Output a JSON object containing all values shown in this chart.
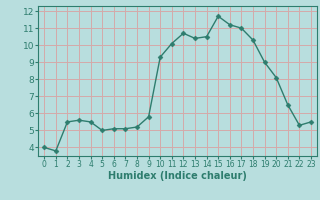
{
  "x": [
    0,
    1,
    2,
    3,
    4,
    5,
    6,
    7,
    8,
    9,
    10,
    11,
    12,
    13,
    14,
    15,
    16,
    17,
    18,
    19,
    20,
    21,
    22,
    23
  ],
  "y": [
    4.0,
    3.8,
    5.5,
    5.6,
    5.5,
    5.0,
    5.1,
    5.1,
    5.2,
    5.8,
    9.3,
    10.1,
    10.7,
    10.4,
    10.5,
    11.7,
    11.2,
    11.0,
    10.3,
    9.0,
    8.1,
    6.5,
    5.3,
    5.5
  ],
  "line_color": "#2e7d6e",
  "marker": "D",
  "marker_size": 2.5,
  "bg_color": "#b8dede",
  "grid_color": "#d4aaaa",
  "xlabel": "Humidex (Indice chaleur)",
  "xlim": [
    -0.5,
    23.5
  ],
  "ylim": [
    3.5,
    12.3
  ],
  "yticks": [
    4,
    5,
    6,
    7,
    8,
    9,
    10,
    11,
    12
  ],
  "xticks": [
    0,
    1,
    2,
    3,
    4,
    5,
    6,
    7,
    8,
    9,
    10,
    11,
    12,
    13,
    14,
    15,
    16,
    17,
    18,
    19,
    20,
    21,
    22,
    23
  ],
  "tick_color": "#2e7d6e",
  "axis_color": "#2e7d6e",
  "xlabel_fontsize": 7,
  "tick_fontsize_x": 5.5,
  "tick_fontsize_y": 6.5
}
